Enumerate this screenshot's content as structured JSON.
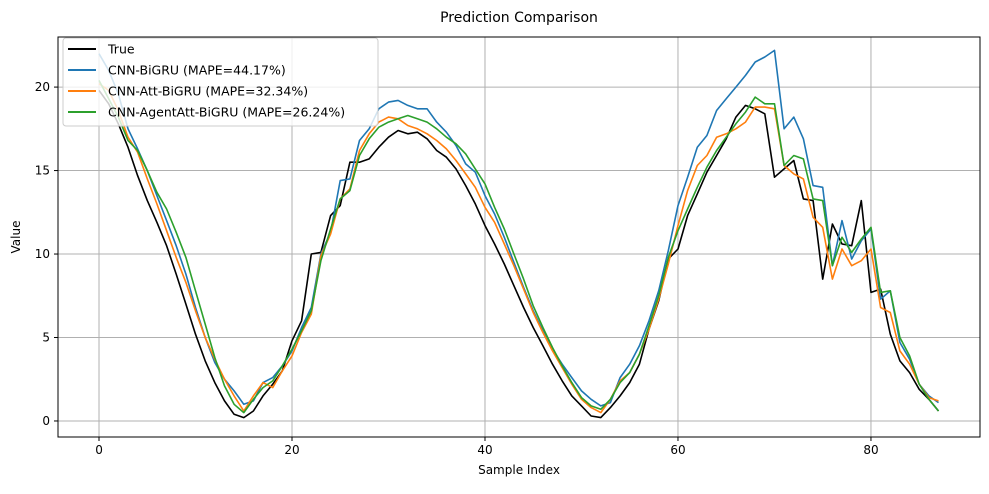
{
  "chart_data": {
    "type": "line",
    "title": "Prediction Comparison",
    "xlabel": "Sample Index",
    "ylabel": "Value",
    "xlim": [
      -4.25,
      91.3
    ],
    "ylim": [
      -0.96,
      23.0
    ],
    "xticks": [
      0,
      20,
      40,
      60,
      80
    ],
    "yticks": [
      0,
      5,
      10,
      15,
      20
    ],
    "grid": true,
    "legend_position": "top-left",
    "series": [
      {
        "name": "True",
        "color": "#000000",
        "values": [
          19.8,
          19,
          17.8,
          16.4,
          14.7,
          13.2,
          11.9,
          10.5,
          8.8,
          7,
          5.2,
          3.6,
          2.3,
          1.2,
          0.4,
          0.2,
          0.6,
          1.5,
          2.2,
          3,
          4.8,
          6,
          10,
          10.1,
          12.3,
          12.9,
          15.5,
          15.5,
          15.7,
          16.4,
          17,
          17.4,
          17.2,
          17.3,
          16.9,
          16.2,
          15.8,
          15.1,
          14.1,
          13,
          11.7,
          10.6,
          9.4,
          8.1,
          6.8,
          5.6,
          4.5,
          3.4,
          2.4,
          1.5,
          0.9,
          0.3,
          0.2,
          0.8,
          1.5,
          2.3,
          3.4,
          5.5,
          7.2,
          9.7,
          10.3,
          12.3,
          13.6,
          14.9,
          15.9,
          16.9,
          18.2,
          18.9,
          18.7,
          18.4,
          14.6,
          15.1,
          15.6,
          13.3,
          13.2,
          8.5,
          11.8,
          10.6,
          10.5,
          13.2,
          7.7,
          7.9,
          5.2,
          3.6,
          2.9,
          1.9,
          1.3,
          0.6
        ]
      },
      {
        "name": "CNN-BiGRU (MAPE=44.17%)",
        "color": "#1f77b4",
        "values": [
          22,
          21,
          19.6,
          17.5,
          16.3,
          15,
          13.5,
          12,
          10.5,
          8.8,
          6.8,
          5,
          3.5,
          2.5,
          1.8,
          1,
          1.2,
          2.3,
          2.6,
          3.3,
          4.2,
          5.6,
          6.8,
          10,
          11.3,
          14.4,
          14.5,
          16.8,
          17.5,
          18.7,
          19.1,
          19.2,
          18.9,
          18.7,
          18.7,
          17.9,
          17.3,
          16.5,
          15.4,
          14.9,
          13.5,
          12.4,
          11,
          9.5,
          8,
          6.6,
          5.4,
          4.3,
          3.4,
          2.6,
          1.8,
          1.3,
          0.9,
          1.1,
          2.6,
          3.4,
          4.5,
          6,
          7.8,
          10.2,
          12.9,
          14.6,
          16.4,
          17.1,
          18.6,
          19.3,
          20,
          20.7,
          21.5,
          21.8,
          22.2,
          17.5,
          18.2,
          16.9,
          14.1,
          14,
          9.3,
          12,
          9.7,
          10.8,
          11.5,
          7.3,
          7.8,
          4.7,
          3.7,
          2.2,
          1.5,
          1.1
        ]
      },
      {
        "name": "CNN-Att-BiGRU (MAPE=32.34%)",
        "color": "#ff7f0e",
        "values": [
          20.2,
          19.8,
          18.6,
          17,
          16.1,
          14.5,
          13,
          11.4,
          9.8,
          8.3,
          6.6,
          5,
          3.7,
          2.5,
          1.5,
          0.6,
          1.5,
          2.3,
          2,
          3,
          3.9,
          5.3,
          6.4,
          9.9,
          11.2,
          13.3,
          13.9,
          16.2,
          17.2,
          17.9,
          18.2,
          18.1,
          17.7,
          17.5,
          17.2,
          16.8,
          16.3,
          15.6,
          14.8,
          14,
          12.8,
          11.9,
          10.6,
          9.3,
          7.9,
          6.5,
          5.3,
          4.2,
          3.2,
          2.2,
          1.3,
          0.8,
          0.5,
          1.3,
          2.4,
          2.9,
          4,
          5.5,
          7.3,
          9.4,
          11.7,
          13.8,
          15.3,
          15.9,
          17,
          17.2,
          17.5,
          17.9,
          18.8,
          18.8,
          18.7,
          15.3,
          14.8,
          14.5,
          12.2,
          11.6,
          8.5,
          10.3,
          9.3,
          9.6,
          10.3,
          6.8,
          6.5,
          4.2,
          3.4,
          2.2,
          1.4,
          1.2
        ]
      },
      {
        "name": "CNN-AgentAtt-BiGRU (MAPE=26.24%)",
        "color": "#2ca02c",
        "values": [
          20.4,
          19.3,
          18.2,
          16.8,
          16.2,
          15,
          13.7,
          12.7,
          11.3,
          9.8,
          7.8,
          5.8,
          3.8,
          2.1,
          1,
          0.5,
          1.3,
          2,
          2.4,
          3.3,
          4.3,
          5.4,
          6.6,
          9.6,
          11.5,
          13.3,
          13.8,
          15.9,
          16.9,
          17.6,
          17.9,
          18.1,
          18.3,
          18.1,
          17.9,
          17.5,
          17,
          16.6,
          16,
          15.1,
          14.2,
          12.8,
          11.5,
          10,
          8.5,
          6.9,
          5.6,
          4.4,
          3.3,
          2.3,
          1.4,
          0.9,
          0.7,
          1.3,
          2.3,
          2.9,
          4,
          5.7,
          7.5,
          9.8,
          11.4,
          12.7,
          14,
          15.2,
          16.2,
          17,
          17.8,
          18.5,
          19.4,
          19,
          19,
          15.3,
          15.9,
          15.7,
          13.3,
          13.2,
          9.3,
          11,
          10.1,
          10.9,
          11.6,
          7.7,
          7.8,
          5,
          3.9,
          2.2,
          1.3,
          0.6
        ]
      }
    ]
  }
}
